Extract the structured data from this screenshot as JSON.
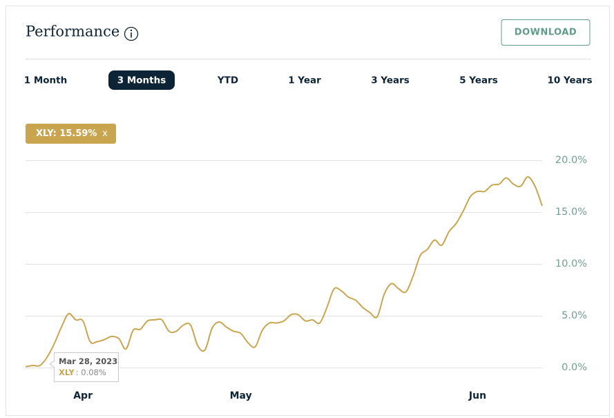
{
  "header": {
    "title": "Performance",
    "button": "DOWNLOAD"
  },
  "tabs": [
    "1 Month",
    "3 Months",
    "YTD",
    "1 Year",
    "3 Years",
    "5 Years",
    "10 Years"
  ],
  "badge": {
    "label": "XLY: 15.59%",
    "close": "x"
  },
  "tooltip": {
    "date": "Mar 28, 2023",
    "series": "XLY",
    "value": ": 0.08%"
  },
  "chart_data": {
    "type": "line",
    "categories": [
      null,
      null,
      null,
      null,
      null,
      null,
      null,
      null,
      "Apr",
      null,
      null,
      null,
      null,
      null,
      null,
      null,
      null,
      null,
      null,
      null,
      null,
      null,
      null,
      null,
      null,
      null,
      null,
      null,
      null,
      null,
      "May",
      null,
      null,
      null,
      null,
      null,
      null,
      null,
      null,
      null,
      null,
      null,
      null,
      null,
      null,
      null,
      null,
      null,
      null,
      null,
      null,
      null,
      null,
      null,
      null,
      null,
      null,
      null,
      null,
      null,
      null,
      null,
      null,
      "Jun",
      null,
      null,
      null,
      null,
      null,
      null,
      null,
      null,
      null
    ],
    "series": [
      {
        "name": "XLY",
        "color": "#c9a54f",
        "values": [
          0.08,
          0.2,
          0.2,
          1.0,
          2.3,
          3.9,
          5.2,
          4.6,
          4.5,
          2.5,
          2.5,
          2.7,
          3.0,
          2.8,
          1.8,
          3.6,
          3.7,
          4.5,
          4.6,
          4.6,
          3.5,
          3.5,
          4.1,
          4.1,
          2.1,
          1.7,
          3.8,
          4.4,
          3.9,
          3.5,
          3.3,
          2.4,
          2.0,
          3.6,
          4.3,
          4.3,
          4.5,
          5.1,
          5.1,
          4.5,
          4.6,
          4.3,
          5.8,
          7.6,
          7.4,
          6.8,
          6.5,
          5.8,
          5.3,
          4.9,
          7.1,
          8.1,
          7.6,
          7.3,
          8.8,
          10.8,
          11.4,
          12.3,
          11.8,
          13.1,
          13.9,
          15.1,
          16.5,
          17.0,
          17.0,
          17.6,
          17.7,
          18.3,
          17.7,
          17.5,
          18.4,
          17.5,
          15.6
        ]
      }
    ],
    "ylim": [
      -2,
      20
    ],
    "yticks": [
      {
        "value": 0,
        "label": "0.0%"
      },
      {
        "value": 5,
        "label": "5.0%"
      },
      {
        "value": 10,
        "label": "10.0%"
      },
      {
        "value": 15,
        "label": "15.0%"
      },
      {
        "value": 20,
        "label": "20.0%"
      }
    ],
    "grid": true
  }
}
